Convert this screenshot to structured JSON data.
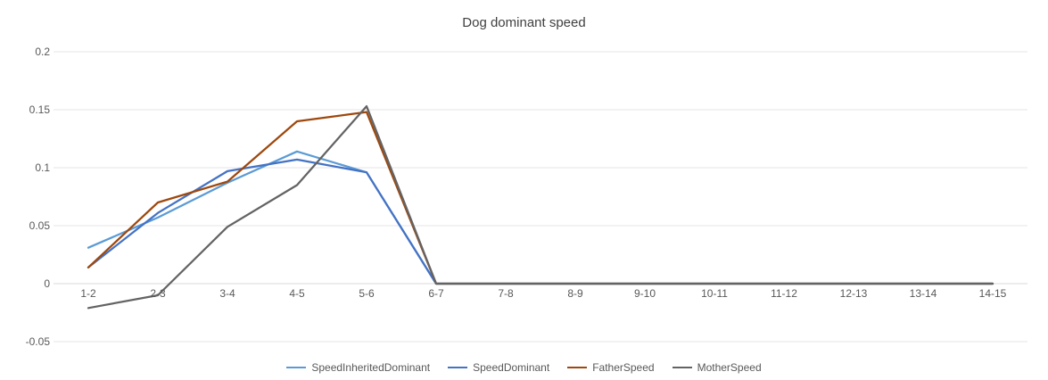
{
  "chart_data": {
    "type": "line",
    "title": "Dog dominant speed",
    "xlabel": "",
    "ylabel": "",
    "categories": [
      "1-2",
      "2-3",
      "3-4",
      "4-5",
      "5-6",
      "6-7",
      "7-8",
      "8-9",
      "9-10",
      "10-11",
      "11-12",
      "12-13",
      "13-14",
      "14-15"
    ],
    "ylim": [
      -0.05,
      0.2
    ],
    "yticks": [
      -0.05,
      0,
      0.05,
      0.1,
      0.15,
      0.2
    ],
    "ytick_labels": [
      "-0.05",
      "0",
      "0.05",
      "0.1",
      "0.15",
      "0.2"
    ],
    "grid": true,
    "legend_position": "bottom",
    "series": [
      {
        "name": "SpeedInheritedDominant",
        "color": "#5b9bd5",
        "values": [
          0.031,
          0.057,
          0.087,
          0.114,
          0.096,
          0,
          0,
          0,
          0,
          0,
          0,
          0,
          0,
          0
        ]
      },
      {
        "name": "SpeedDominant",
        "color": "#4472c4",
        "values": [
          0.014,
          0.061,
          0.097,
          0.107,
          0.096,
          0,
          0,
          0,
          0,
          0,
          0,
          0,
          0,
          0
        ]
      },
      {
        "name": "FatherSpeed",
        "color": "#9e480e",
        "values": [
          0.014,
          0.07,
          0.088,
          0.14,
          0.148,
          0,
          0,
          0,
          0,
          0,
          0,
          0,
          0,
          0
        ]
      },
      {
        "name": "MotherSpeed",
        "color": "#636363",
        "values": [
          -0.021,
          -0.01,
          0.049,
          0.085,
          0.153,
          0,
          0,
          0,
          0,
          0,
          0,
          0,
          0,
          0
        ]
      }
    ]
  }
}
